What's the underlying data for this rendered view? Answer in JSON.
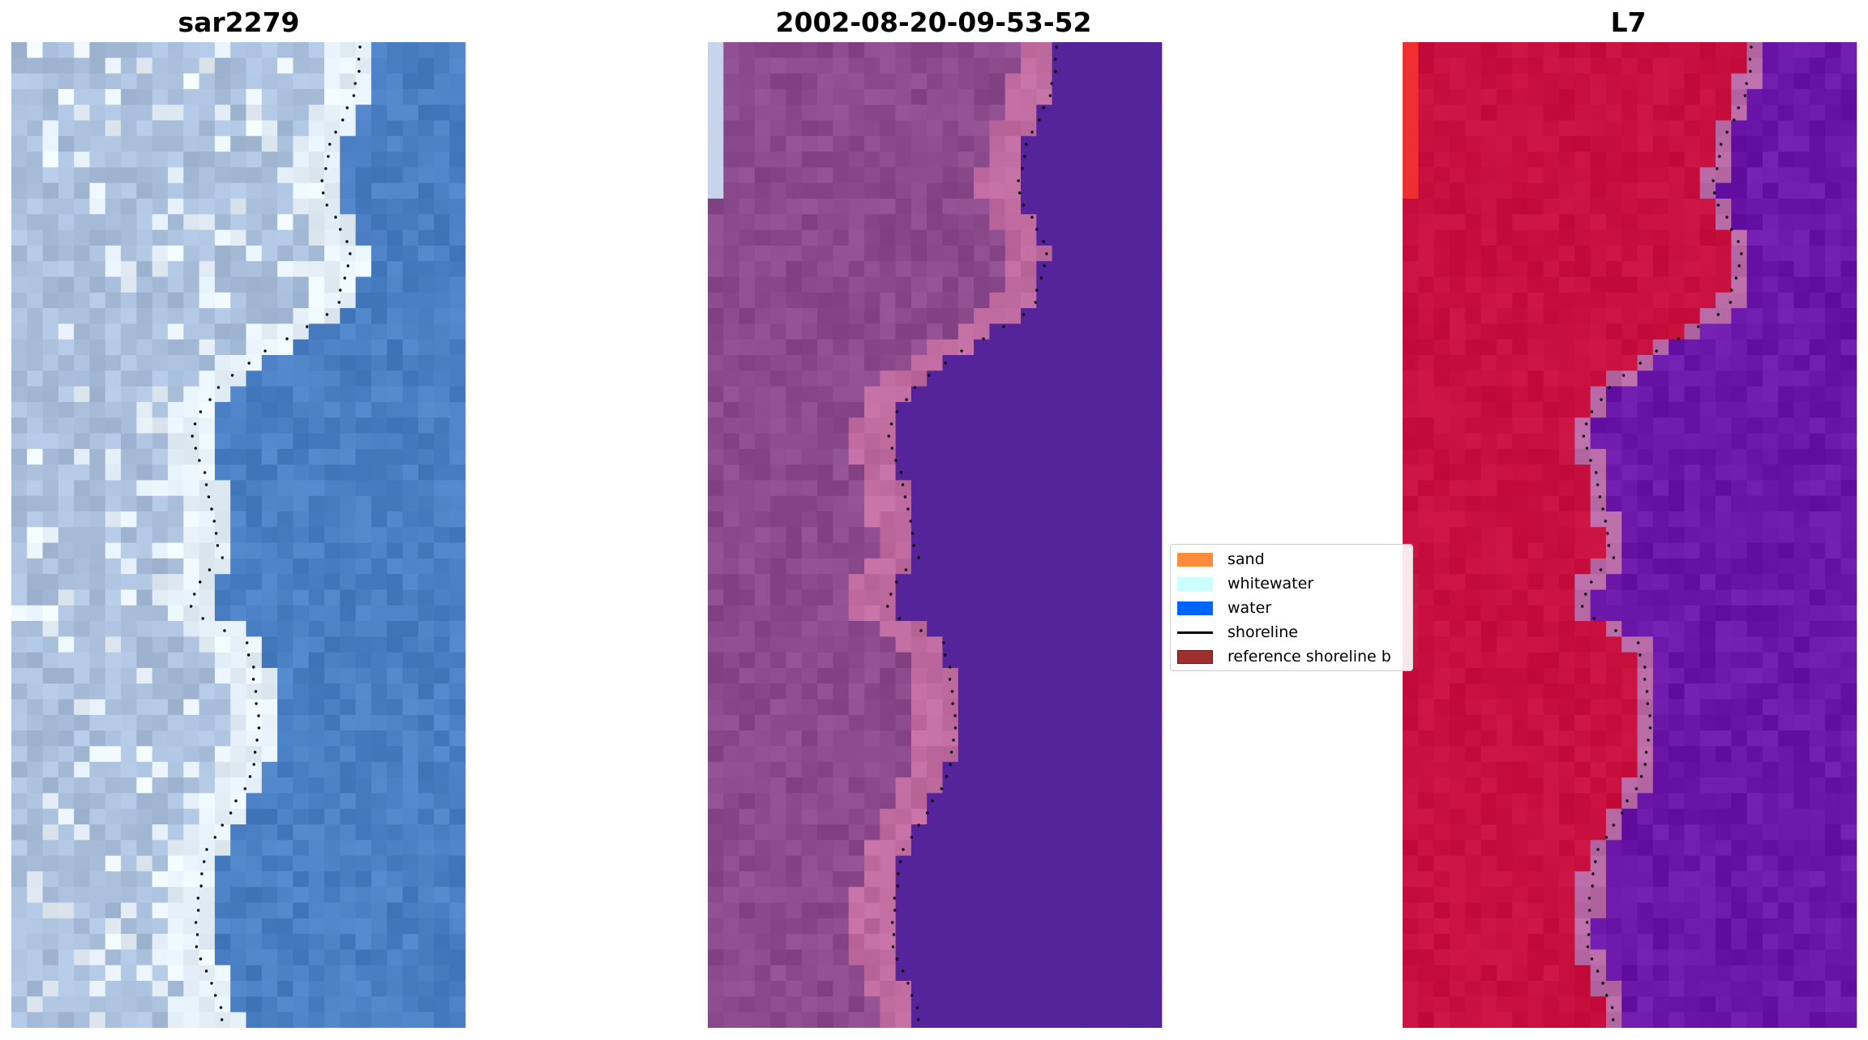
{
  "panels": [
    {
      "title": "sar2279",
      "style": "true-color satellite image"
    },
    {
      "title": "2002-08-20-09-53-52",
      "style": "false-color composite"
    },
    {
      "title": "L7",
      "style": "classified false-color"
    }
  ],
  "legend": [
    {
      "label": "sand",
      "color": "#ff8c3a",
      "kind": "patch"
    },
    {
      "label": "whitewater",
      "color": "#ccffff",
      "kind": "patch"
    },
    {
      "label": "water",
      "color": "#0064ff",
      "kind": "patch"
    },
    {
      "label": "shoreline",
      "color": "#000000",
      "kind": "line"
    },
    {
      "label": "reference shoreline b",
      "color": "#9e2f2f",
      "kind": "patch"
    }
  ],
  "colors": {
    "sea_true": "#4a7fc4",
    "land_true": "#a9bfdc",
    "surf_true": "#e6f0f8",
    "sea_false": "#55249a",
    "land_false": "#8b4a8c",
    "edge_false": "#c06ba0",
    "sea_class": "#6a16a8",
    "land_class": "#c8103f",
    "edge_class": "#b86aa6",
    "shoreline_dots": "#000000"
  }
}
